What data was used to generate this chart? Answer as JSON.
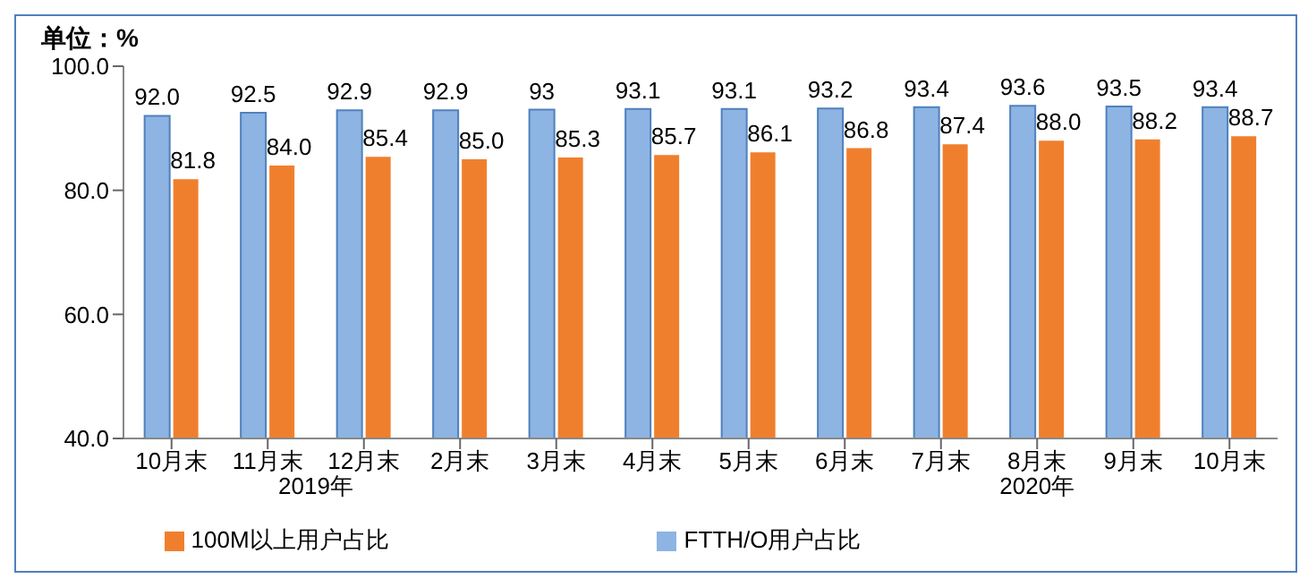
{
  "chart_data": {
    "type": "bar",
    "title": "单位：%",
    "categories": [
      "10月末",
      "11月末",
      "12月末",
      "2月末",
      "3月末",
      "4月末",
      "5月末",
      "6月末",
      "7月末",
      "8月末",
      "9月末",
      "10月末"
    ],
    "series": [
      {
        "name": "FTTH/O用户占比",
        "color": "#8db4e2",
        "values": [
          92.0,
          92.5,
          92.9,
          92.9,
          93,
          93.1,
          93.1,
          93.2,
          93.4,
          93.6,
          93.5,
          93.4
        ],
        "value_labels": [
          "92.0",
          "92.5",
          "92.9",
          "92.9",
          "93",
          "93.1",
          "93.1",
          "93.2",
          "93.4",
          "93.6",
          "93.5",
          "93.4"
        ]
      },
      {
        "name": "100M以上用户占比",
        "color": "#f07f2d",
        "values": [
          81.8,
          84.0,
          85.4,
          85.0,
          85.3,
          85.7,
          86.1,
          86.8,
          87.4,
          88.0,
          88.2,
          88.7
        ],
        "value_labels": [
          "81.8",
          "84.0",
          "85.4",
          "85.0",
          "85.3",
          "85.7",
          "86.1",
          "86.8",
          "87.4",
          "88.0",
          "88.2",
          "88.7"
        ]
      }
    ],
    "ylim": [
      40,
      100
    ],
    "yticks": [
      {
        "value": 40,
        "label": "40.0"
      },
      {
        "value": 60,
        "label": "60.0"
      },
      {
        "value": 80,
        "label": "80.0"
      },
      {
        "value": 100,
        "label": "100.0"
      }
    ],
    "annotations": [
      "2019年",
      "2020年"
    ],
    "grid": false,
    "legend": "bottom"
  }
}
